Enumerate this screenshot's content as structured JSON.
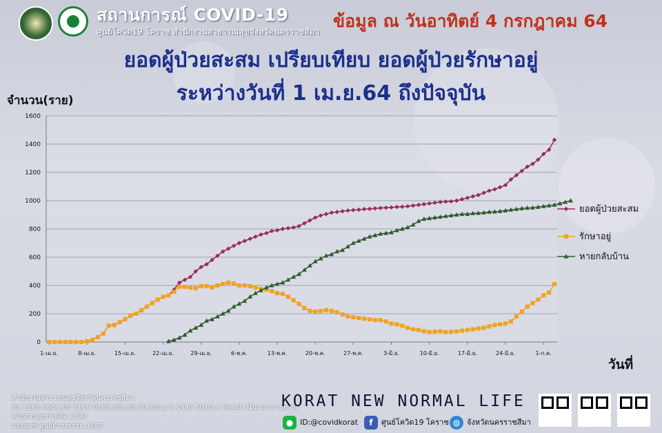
{
  "header": {
    "title": "สถานการณ์ COVID-19",
    "subtitle": "ศูนย์โควิด19 โคราช สำนักงานสาธารณสุขจังหวัดนครราชสีมา",
    "date": "ข้อมูล ณ วันอาทิตย์ 4 กรกฎาคม 64"
  },
  "chart_data": {
    "type": "line",
    "title": "ยอดผู้ป่วยสะสม เปรียบเทียบ ยอดผู้ป่วยรักษาอยู่",
    "subtitle": "ระหว่างวันที่ 1 เม.ย.64 ถึงปัจจุบัน",
    "ylabel": "จำนวน(ราย)",
    "xlabel": "วันที่",
    "ylim": [
      0,
      1600
    ],
    "yticks": [
      "0",
      "200",
      "400",
      "600",
      "800",
      "1000",
      "1200",
      "1400",
      "1600"
    ],
    "xticks": [
      {
        "day": 0,
        "label": "1-เม.ย."
      },
      {
        "day": 7,
        "label": "8-เม.ย."
      },
      {
        "day": 14,
        "label": "15-เม.ย."
      },
      {
        "day": 21,
        "label": "22-เม.ย."
      },
      {
        "day": 28,
        "label": "29-เม.ย."
      },
      {
        "day": 35,
        "label": "6-พ.ค."
      },
      {
        "day": 42,
        "label": "13-พ.ค."
      },
      {
        "day": 49,
        "label": "20-พ.ค."
      },
      {
        "day": 56,
        "label": "27-พ.ค."
      },
      {
        "day": 63,
        "label": "3-มิ.ย."
      },
      {
        "day": 70,
        "label": "10-มิ.ย."
      },
      {
        "day": 77,
        "label": "17-มิ.ย."
      },
      {
        "day": 84,
        "label": "24-มิ.ย."
      },
      {
        "day": 91,
        "label": "1-ก.ค."
      }
    ],
    "grid": true,
    "legend_position": "right",
    "series": [
      {
        "name": "ยอดผู้ป่วยสะสม",
        "color": "#9b2a58",
        "marker": "diamond",
        "start_day": 0,
        "values": [
          0,
          0,
          0,
          0,
          0,
          0,
          0,
          5,
          15,
          35,
          60,
          115,
          120,
          140,
          160,
          185,
          200,
          225,
          250,
          275,
          300,
          320,
          330,
          370,
          420,
          440,
          460,
          500,
          530,
          550,
          580,
          610,
          640,
          660,
          680,
          700,
          715,
          730,
          745,
          760,
          770,
          785,
          790,
          800,
          805,
          810,
          820,
          840,
          860,
          880,
          895,
          905,
          915,
          920,
          925,
          930,
          933,
          936,
          940,
          942,
          945,
          948,
          950,
          952,
          955,
          957,
          960,
          965,
          970,
          975,
          980,
          985,
          990,
          993,
          995,
          1000,
          1010,
          1020,
          1030,
          1040,
          1055,
          1070,
          1080,
          1095,
          1110,
          1150,
          1180,
          1210,
          1240,
          1260,
          1290,
          1330,
          1360,
          1430
        ]
      },
      {
        "name": "รักษาอยู่",
        "color": "#f0a320",
        "marker": "square",
        "start_day": 0,
        "values": [
          0,
          0,
          0,
          0,
          0,
          0,
          0,
          5,
          15,
          35,
          60,
          115,
          120,
          140,
          160,
          185,
          200,
          225,
          250,
          275,
          300,
          320,
          330,
          355,
          390,
          390,
          385,
          380,
          395,
          395,
          385,
          400,
          410,
          420,
          415,
          400,
          400,
          395,
          385,
          375,
          370,
          360,
          345,
          340,
          320,
          295,
          270,
          240,
          220,
          215,
          220,
          225,
          220,
          210,
          195,
          180,
          175,
          170,
          165,
          160,
          155,
          155,
          145,
          130,
          125,
          115,
          100,
          90,
          85,
          75,
          70,
          72,
          75,
          70,
          72,
          75,
          80,
          85,
          90,
          95,
          100,
          110,
          120,
          125,
          130,
          145,
          180,
          215,
          250,
          275,
          300,
          330,
          350,
          410
        ]
      },
      {
        "name": "หายกลับบ้าน",
        "color": "#2f5a2f",
        "marker": "triangle",
        "start_day": 22,
        "values": [
          5,
          15,
          30,
          50,
          80,
          100,
          120,
          150,
          160,
          180,
          200,
          220,
          250,
          270,
          290,
          320,
          345,
          365,
          385,
          400,
          410,
          420,
          440,
          460,
          480,
          510,
          540,
          570,
          590,
          610,
          620,
          640,
          650,
          675,
          700,
          715,
          730,
          745,
          755,
          765,
          770,
          775,
          790,
          800,
          810,
          830,
          855,
          870,
          875,
          880,
          885,
          890,
          895,
          900,
          905,
          905,
          910,
          912,
          915,
          920,
          922,
          925,
          930,
          935,
          940,
          945,
          948,
          950,
          955,
          960,
          965,
          970,
          980,
          990,
          1000
        ]
      }
    ]
  },
  "footer": {
    "org": "สำนักงานสาธารณสุขจังหวัดนครราชสีมา",
    "phones": "08 1265 5604,06 5119 0188,(08.30-20.30น.) 0 4446 5010-4 ต่อ440 (ในเวลาราชการ)",
    "hotline": "สายด่วนสุขภาพจิต 1323",
    "report": "แจ้งทุกข์ ศูนย์ดำรงธรรม 1567",
    "slogan": "KORAT NEW NORMAL LIFE",
    "line_id": "ID:@covidkorat",
    "facebook": "ศูนย์โควิด19 โคราช",
    "website": "จังหวัดนครราชสีมา"
  },
  "icons": {
    "line": "line-icon",
    "facebook": "facebook-icon",
    "web": "globe-icon"
  }
}
